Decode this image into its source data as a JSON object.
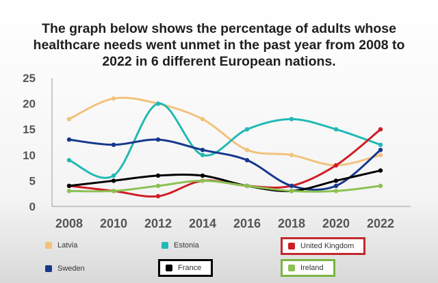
{
  "title": {
    "line1": "The graph below shows the percentage of adults whose",
    "line2": "healthcare needs went unmet in the past year from 2008 to",
    "line3": "2022 in 6 different European nations."
  },
  "chart_data": {
    "type": "line",
    "title": "The graph below shows the percentage of adults whose healthcare needs went unmet in the past year from 2008 to 2022 in 6 different European nations.",
    "xlabel": "",
    "ylabel": "",
    "x": [
      "2008",
      "2010",
      "2012",
      "2014",
      "2016",
      "2018",
      "2020",
      "2022"
    ],
    "yticks": [
      "0",
      "5",
      "10",
      "15",
      "20",
      "25"
    ],
    "ylim": [
      0,
      25
    ],
    "grid": false,
    "series": [
      {
        "name": "Latvia",
        "color": "#f2c27c",
        "values": [
          17,
          21,
          20,
          17,
          11,
          10,
          8,
          10
        ]
      },
      {
        "name": "Estonia",
        "color": "#21b9b4",
        "values": [
          9,
          6,
          20,
          10,
          15,
          17,
          15,
          12
        ]
      },
      {
        "name": "United Kingdom",
        "color": "#d01c24",
        "values": [
          4,
          3,
          2,
          5,
          4,
          4,
          8,
          15
        ]
      },
      {
        "name": "Sweden",
        "color": "#17378c",
        "values": [
          13,
          12,
          13,
          11,
          9,
          4,
          4,
          11
        ]
      },
      {
        "name": "France",
        "color": "#000000",
        "values": [
          4,
          5,
          6,
          6,
          4,
          3,
          5,
          7
        ]
      },
      {
        "name": "Ireland",
        "color": "#8cc152",
        "values": [
          3,
          3,
          4,
          5,
          4,
          3,
          3,
          4
        ]
      }
    ]
  },
  "legend": [
    {
      "label": "Latvia",
      "color": "#f2c27c",
      "boxed": false,
      "box_color": ""
    },
    {
      "label": "Estonia",
      "color": "#21b9b4",
      "boxed": false,
      "box_color": ""
    },
    {
      "label": "United Kingdom",
      "color": "#d01c24",
      "boxed": true,
      "box_color": "#c1272d"
    },
    {
      "label": "Sweden",
      "color": "#17378c",
      "boxed": false,
      "box_color": ""
    },
    {
      "label": "France",
      "color": "#000000",
      "boxed": true,
      "box_color": "#000000"
    },
    {
      "label": "Ireland",
      "color": "#8cc152",
      "boxed": true,
      "box_color": "#7cb342"
    }
  ]
}
